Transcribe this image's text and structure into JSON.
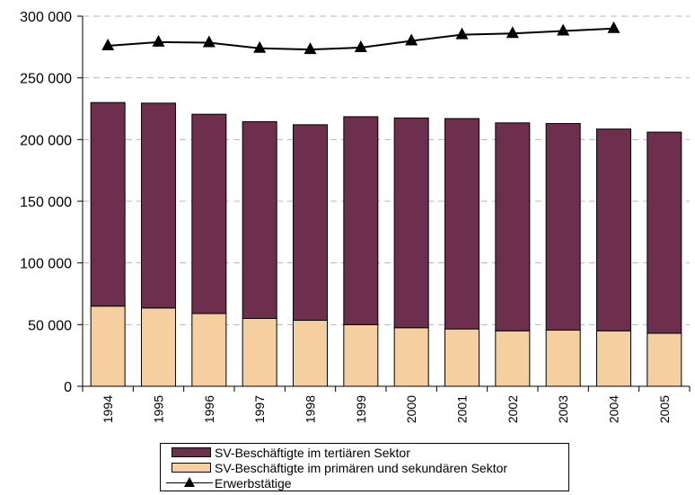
{
  "chart_data": {
    "type": "bar",
    "stacked": true,
    "categories": [
      "1994",
      "1995",
      "1996",
      "1997",
      "1998",
      "1999",
      "2000",
      "2001",
      "2002",
      "2003",
      "2004",
      "2005"
    ],
    "series": [
      {
        "name": "SV-Beschäftigte im primären und sekundären Sektor",
        "kind": "bar",
        "color": "#F5CFA0",
        "values": [
          65000,
          63500,
          59000,
          55000,
          53500,
          50000,
          47500,
          46500,
          45000,
          45500,
          45000,
          43000
        ]
      },
      {
        "name": "SV-Beschäftigte im tertiären Sektor",
        "kind": "bar",
        "color": "#6E2F4F",
        "values": [
          165000,
          166000,
          161500,
          159500,
          158500,
          168500,
          170000,
          170500,
          168500,
          167500,
          163500,
          163000
        ]
      },
      {
        "name": "Erwerbstätige",
        "kind": "line",
        "marker": "triangle",
        "color": "#000000",
        "values": [
          276000,
          279000,
          278500,
          274000,
          273000,
          274500,
          280000,
          285000,
          286000,
          288000,
          290000,
          null
        ]
      }
    ],
    "ylim": [
      0,
      300000
    ],
    "yticks": [
      "0",
      "50 000",
      "100 000",
      "150 000",
      "200 000",
      "250 000",
      "300 000"
    ],
    "grid": true,
    "legend_position": "bottom",
    "xlabel": "",
    "ylabel": ""
  },
  "legend": {
    "tertiary": "SV-Beschäftigte im tertiären Sektor",
    "primary": "SV-Beschäftigte im primären und sekundären Sektor",
    "employed": "Erwerbstätige"
  }
}
